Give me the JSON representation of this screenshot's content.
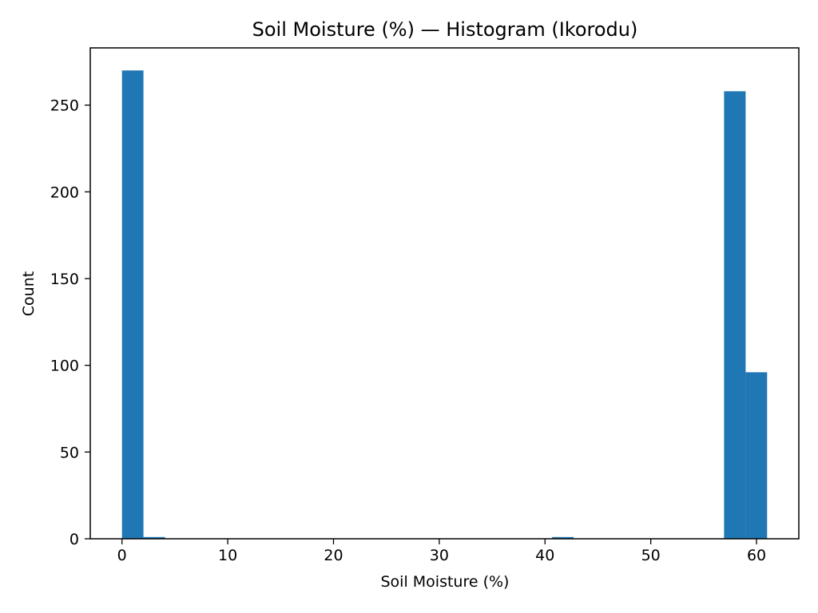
{
  "chart_data": {
    "type": "bar",
    "title": "Soil Moisture (%) — Histogram (Ikorodu)",
    "xlabel": "Soil Moisture (%)",
    "ylabel": "Count",
    "xlim": [
      -3,
      64
    ],
    "ylim": [
      0,
      283
    ],
    "xticks": [
      0,
      10,
      20,
      30,
      40,
      50,
      60
    ],
    "yticks": [
      0,
      50,
      100,
      150,
      200,
      250
    ],
    "bar_color": "#1f77b4",
    "grid": false,
    "bins": [
      {
        "x0": 0.0,
        "x1": 2.03,
        "count": 270
      },
      {
        "x0": 2.03,
        "x1": 4.07,
        "count": 1
      },
      {
        "x0": 40.67,
        "x1": 42.7,
        "count": 1
      },
      {
        "x0": 56.93,
        "x1": 58.97,
        "count": 258
      },
      {
        "x0": 58.97,
        "x1": 61.0,
        "count": 96
      }
    ]
  }
}
